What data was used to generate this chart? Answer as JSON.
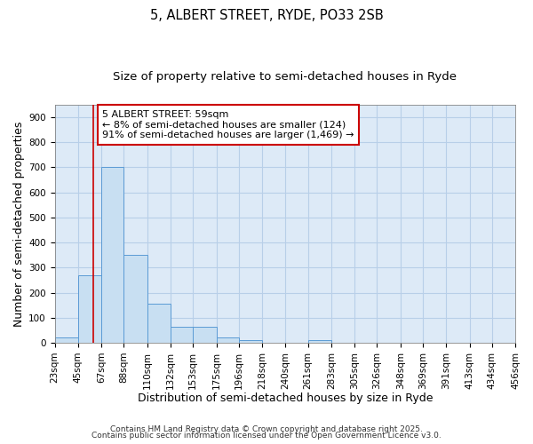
{
  "title_line1": "5, ALBERT STREET, RYDE, PO33 2SB",
  "title_line2": "Size of property relative to semi-detached houses in Ryde",
  "xlabel": "Distribution of semi-detached houses by size in Ryde",
  "ylabel": "Number of semi-detached properties",
  "bins": [
    23,
    45,
    67,
    88,
    110,
    132,
    153,
    175,
    196,
    218,
    240,
    261,
    283,
    305,
    326,
    348,
    369,
    391,
    413,
    434,
    456
  ],
  "bin_labels": [
    "23sqm",
    "45sqm",
    "67sqm",
    "88sqm",
    "110sqm",
    "132sqm",
    "153sqm",
    "175sqm",
    "196sqm",
    "218sqm",
    "240sqm",
    "261sqm",
    "283sqm",
    "305sqm",
    "326sqm",
    "348sqm",
    "369sqm",
    "391sqm",
    "413sqm",
    "434sqm",
    "456sqm"
  ],
  "values": [
    20,
    270,
    700,
    350,
    155,
    65,
    65,
    22,
    12,
    0,
    0,
    10,
    0,
    0,
    0,
    0,
    0,
    0,
    0,
    0
  ],
  "bar_color": "#c8dff2",
  "bar_edge_color": "#5b9bd5",
  "bar_edge_width": 0.7,
  "grid_color": "#b8cfe8",
  "plot_bg_color": "#ddeaf7",
  "fig_bg_color": "#ffffff",
  "red_line_x": 59,
  "annotation_title": "5 ALBERT STREET: 59sqm",
  "annotation_line2": "← 8% of semi-detached houses are smaller (124)",
  "annotation_line3": "91% of semi-detached houses are larger (1,469) →",
  "annotation_box_color": "#ffffff",
  "annotation_edge_color": "#cc0000",
  "ylim_max": 950,
  "yticks": [
    0,
    100,
    200,
    300,
    400,
    500,
    600,
    700,
    800,
    900
  ],
  "footer_line1": "Contains HM Land Registry data © Crown copyright and database right 2025.",
  "footer_line2": "Contains public sector information licensed under the Open Government Licence v3.0.",
  "title_fontsize": 10.5,
  "subtitle_fontsize": 9.5,
  "axis_label_fontsize": 9,
  "tick_fontsize": 7.5,
  "annotation_fontsize": 8,
  "footer_fontsize": 6.5
}
